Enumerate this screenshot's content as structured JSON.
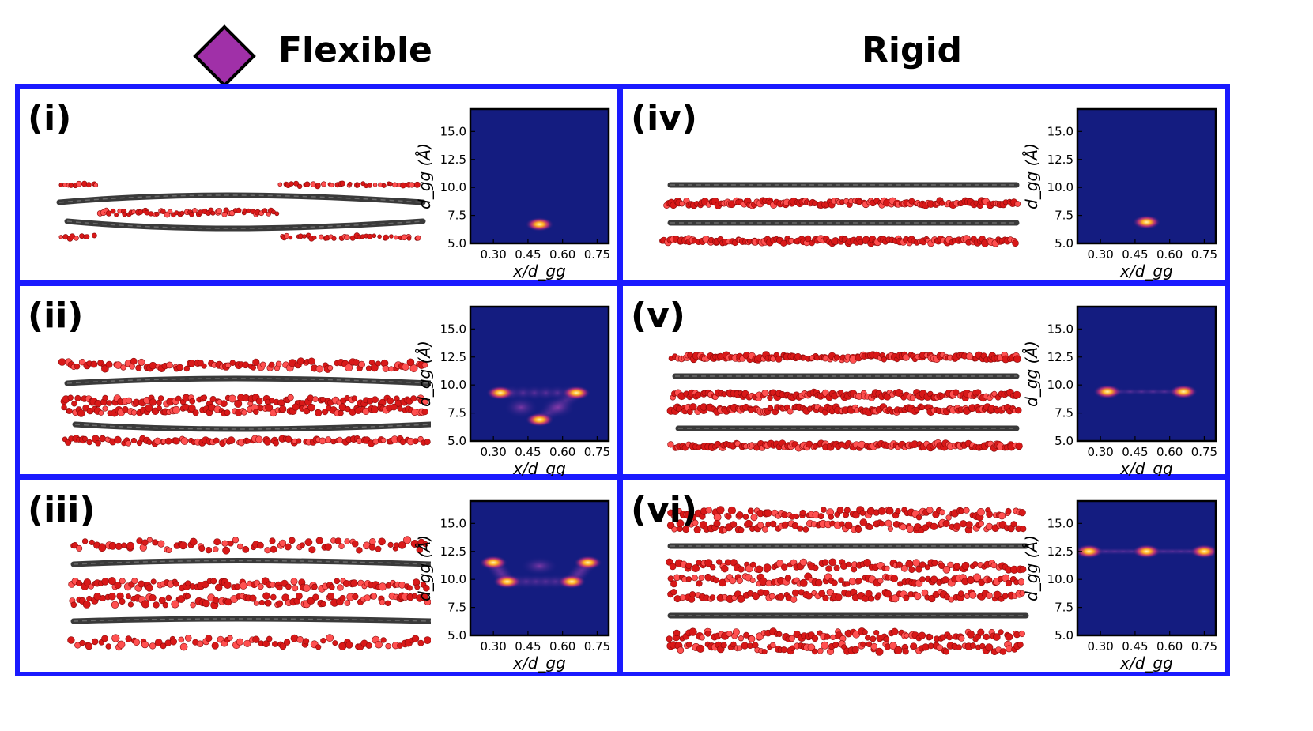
{
  "header": {
    "flexible_label": "Flexible",
    "rigid_label": "Rigid",
    "marker_color": "#a030a8"
  },
  "colors": {
    "frame": "#1a1aff",
    "plot_bg": "#141c80",
    "ion": "#e02020",
    "sheet": "#3a3a3a"
  },
  "axes": {
    "ylabel": "d_gg (Å)",
    "xlabel": "x/d_gg",
    "yticks": [
      "5.0",
      "7.5",
      "10.0",
      "12.5",
      "15.0"
    ],
    "xticks": [
      "0.30",
      "0.45",
      "0.60",
      "0.75"
    ]
  },
  "panels": [
    {
      "id": "i",
      "label": "(i)",
      "column": "Flexible",
      "peaks": [
        {
          "x": 0.5,
          "y": 6.7
        }
      ],
      "glow": "bottom"
    },
    {
      "id": "ii",
      "label": "(ii)",
      "column": "Flexible",
      "peaks": [
        {
          "x": 0.33,
          "y": 9.3
        },
        {
          "x": 0.66,
          "y": 9.3
        },
        {
          "x": 0.5,
          "y": 6.9
        }
      ],
      "glow": "v"
    },
    {
      "id": "iii",
      "label": "(iii)",
      "column": "Flexible",
      "peaks": [
        {
          "x": 0.3,
          "y": 11.5
        },
        {
          "x": 0.36,
          "y": 9.8
        },
        {
          "x": 0.64,
          "y": 9.8
        },
        {
          "x": 0.71,
          "y": 11.5
        }
      ],
      "glow": "w"
    },
    {
      "id": "iv",
      "label": "(iv)",
      "column": "Rigid",
      "peaks": [
        {
          "x": 0.5,
          "y": 6.9
        }
      ],
      "glow": "none"
    },
    {
      "id": "v",
      "label": "(v)",
      "column": "Rigid",
      "peaks": [
        {
          "x": 0.33,
          "y": 9.4
        },
        {
          "x": 0.66,
          "y": 9.4
        }
      ],
      "glow": "line"
    },
    {
      "id": "vi",
      "label": "(vi)",
      "column": "Rigid",
      "peaks": [
        {
          "x": 0.25,
          "y": 12.5
        },
        {
          "x": 0.5,
          "y": 12.5
        },
        {
          "x": 0.75,
          "y": 12.5
        }
      ],
      "glow": "line"
    }
  ]
}
